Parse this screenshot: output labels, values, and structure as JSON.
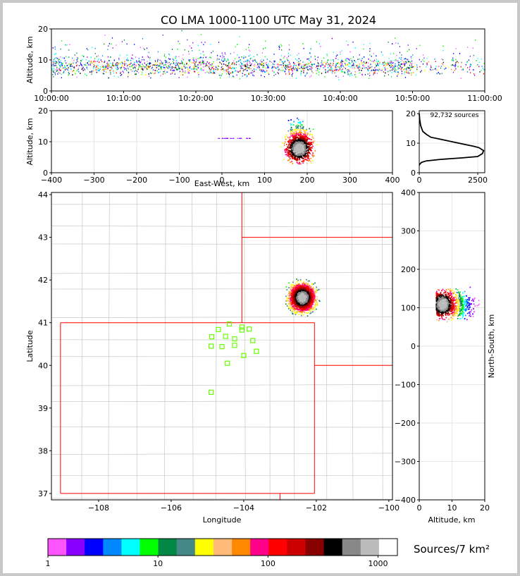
{
  "title": "CO LMA 1000-1100 UTC May 31, 2024",
  "colors": {
    "background_border": "#c8c8c8",
    "state_border": "#ff0000",
    "county_border": "#c8c8c8",
    "network_station": "#66ff00",
    "colormap": [
      "#ff55ff",
      "#8800ff",
      "#0000ff",
      "#0088ff",
      "#00ffff",
      "#00ff00",
      "#008844",
      "#448888",
      "#ffff00",
      "#ffbb77",
      "#ff8800",
      "#ff0088",
      "#ff0000",
      "#cc0000",
      "#880000",
      "#000000",
      "#888888",
      "#bbbbbb",
      "#ffffff"
    ]
  },
  "colorbar": {
    "label": "Sources/7 km²",
    "tick_labels": [
      "1",
      "10",
      "100",
      "1000"
    ],
    "range": [
      1,
      1500
    ],
    "scale": "log"
  },
  "chart_data": [
    {
      "type": "heatmap",
      "panel": "altitude-time",
      "title": "CO LMA 1000-1100 UTC May 31, 2024",
      "xlabel": "",
      "ylabel": "Altitude, km",
      "x_ticks": [
        "10:00:00",
        "10:10:00",
        "10:20:00",
        "10:30:00",
        "10:40:00",
        "10:50:00",
        "11:00:00"
      ],
      "xlim": [
        "10:00:00",
        "11:00:00"
      ],
      "ylim": [
        0,
        20
      ],
      "y_ticks": [
        0,
        10,
        20
      ],
      "note": "dense sources between ~4 and ~15 km for the full hour, sparser after 10:50"
    },
    {
      "type": "heatmap",
      "panel": "east-west-altitude",
      "xlabel": "East-West, km",
      "ylabel": "Altitude, km",
      "xlim": [
        -400,
        400
      ],
      "ylim": [
        0,
        20
      ],
      "x_ticks": [
        -400,
        -300,
        -200,
        -100,
        0,
        100,
        200,
        300,
        400
      ],
      "y_ticks": [
        0,
        10,
        20
      ],
      "grid": true,
      "core": {
        "x_range": [
          110,
          250
        ],
        "alt_range": [
          3,
          20
        ],
        "peak_x": 180,
        "peak_alt": 8
      }
    },
    {
      "type": "line",
      "panel": "altitude-histogram",
      "annotation": "92,732 sources",
      "xlim": [
        0,
        2800
      ],
      "ylim": [
        0,
        21
      ],
      "x_ticks": [
        0,
        2500
      ],
      "y_ticks": [
        0,
        10,
        20
      ],
      "x": [
        0,
        20,
        60,
        150,
        300,
        500,
        800,
        1100,
        1400,
        1700,
        2000,
        2300,
        2550,
        2750,
        2700,
        2600,
        2500,
        1800,
        900,
        300,
        100,
        30,
        0
      ],
      "y": [
        20,
        18,
        16,
        14,
        13,
        12,
        11.5,
        11,
        10.5,
        10,
        9.5,
        9,
        8.5,
        7.5,
        6.5,
        6,
        5.5,
        5,
        4.5,
        4,
        3.5,
        3,
        2.5
      ]
    },
    {
      "type": "scatter",
      "panel": "plan-view-map",
      "xlabel": "Longitude",
      "ylabel": "Latitude",
      "xlim": [
        -109.3,
        -99.9
      ],
      "ylim": [
        36.85,
        44.05
      ],
      "x_ticks": [
        -108,
        -106,
        -104,
        -102,
        -100
      ],
      "y_ticks": [
        37,
        38,
        39,
        40,
        41,
        42,
        43,
        44
      ],
      "storm_core": {
        "lon_range": [
          -103.1,
          -101.8
        ],
        "lat_range": [
          40.7,
          42.3
        ],
        "peak_lon": -102.4,
        "peak_lat": 41.6
      },
      "stations": [
        {
          "lon": -104.4,
          "lat": 40.97
        },
        {
          "lon": -104.05,
          "lat": 40.9
        },
        {
          "lon": -104.05,
          "lat": 40.83
        },
        {
          "lon": -103.85,
          "lat": 40.85
        },
        {
          "lon": -104.7,
          "lat": 40.84
        },
        {
          "lon": -104.88,
          "lat": 40.67
        },
        {
          "lon": -104.5,
          "lat": 40.68
        },
        {
          "lon": -104.25,
          "lat": 40.62
        },
        {
          "lon": -103.75,
          "lat": 40.58
        },
        {
          "lon": -104.9,
          "lat": 40.45
        },
        {
          "lon": -104.6,
          "lat": 40.44
        },
        {
          "lon": -104.25,
          "lat": 40.47
        },
        {
          "lon": -103.65,
          "lat": 40.33
        },
        {
          "lon": -104.0,
          "lat": 40.23
        },
        {
          "lon": -104.45,
          "lat": 40.05
        },
        {
          "lon": -104.9,
          "lat": 39.37
        }
      ]
    },
    {
      "type": "heatmap",
      "panel": "north-south-altitude",
      "xlabel": "Altitude, km",
      "ylabel": "North-South, km",
      "xlim": [
        0,
        20
      ],
      "ylim": [
        -400,
        400
      ],
      "x_ticks": [
        0,
        10,
        20
      ],
      "y_ticks": [
        -400,
        -300,
        -200,
        -100,
        0,
        100,
        200,
        300,
        400
      ],
      "grid": true,
      "core": {
        "ns_range": [
          30,
          210
        ],
        "alt_range": [
          3,
          20
        ],
        "peak_ns": 110,
        "peak_alt": 7
      }
    }
  ]
}
